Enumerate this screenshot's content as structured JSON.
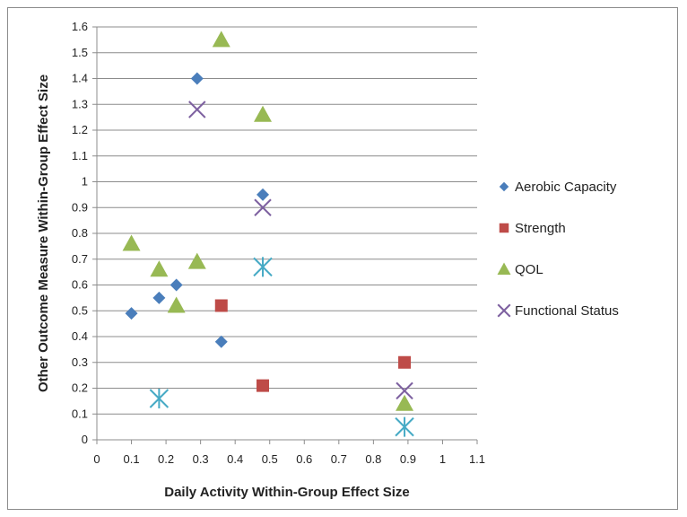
{
  "chart_data": {
    "type": "scatter",
    "title": "",
    "xlabel": "Daily Activity Within-Group Effect Size",
    "ylabel": "Other Outcome Measure Within-Group Effect Size",
    "xlim": [
      0,
      1.1
    ],
    "ylim": [
      0,
      1.6
    ],
    "x_ticks": [
      "0",
      "0.1",
      "0.2",
      "0.3",
      "0.4",
      "0.5",
      "0.6",
      "0.7",
      "0.8",
      "0.9",
      "1",
      "1.1"
    ],
    "y_ticks": [
      "0",
      "0.1",
      "0.2",
      "0.3",
      "0.4",
      "0.5",
      "0.6",
      "0.7",
      "0.8",
      "0.9",
      "1",
      "1.1",
      "1.2",
      "1.3",
      "1.4",
      "1.5",
      "1.6"
    ],
    "grid": "horizontal",
    "legend_position": "right",
    "series": [
      {
        "name": "Aerobic Capacity",
        "marker": "diamond",
        "color": "#4a7ebb",
        "points": [
          [
            0.1,
            0.49
          ],
          [
            0.18,
            0.55
          ],
          [
            0.23,
            0.6
          ],
          [
            0.29,
            1.4
          ],
          [
            0.36,
            0.38
          ],
          [
            0.48,
            0.95
          ]
        ]
      },
      {
        "name": "Strength",
        "marker": "square",
        "color": "#be4b48",
        "points": [
          [
            0.36,
            0.52
          ],
          [
            0.48,
            0.21
          ],
          [
            0.89,
            0.3
          ]
        ]
      },
      {
        "name": "QOL",
        "marker": "triangle",
        "color": "#98b954",
        "points": [
          [
            0.1,
            0.76
          ],
          [
            0.18,
            0.66
          ],
          [
            0.23,
            0.52
          ],
          [
            0.29,
            0.69
          ],
          [
            0.36,
            1.55
          ],
          [
            0.48,
            1.26
          ],
          [
            0.89,
            0.14
          ]
        ]
      },
      {
        "name": "Functional Status",
        "marker": "x",
        "color": "#7d60a0",
        "points": [
          [
            0.29,
            1.28
          ],
          [
            0.48,
            0.9
          ],
          [
            0.89,
            0.19
          ]
        ]
      },
      {
        "name": "",
        "marker": "star",
        "color": "#46aac5",
        "points": [
          [
            0.18,
            0.16
          ],
          [
            0.48,
            0.67
          ],
          [
            0.89,
            0.05
          ]
        ]
      }
    ]
  }
}
